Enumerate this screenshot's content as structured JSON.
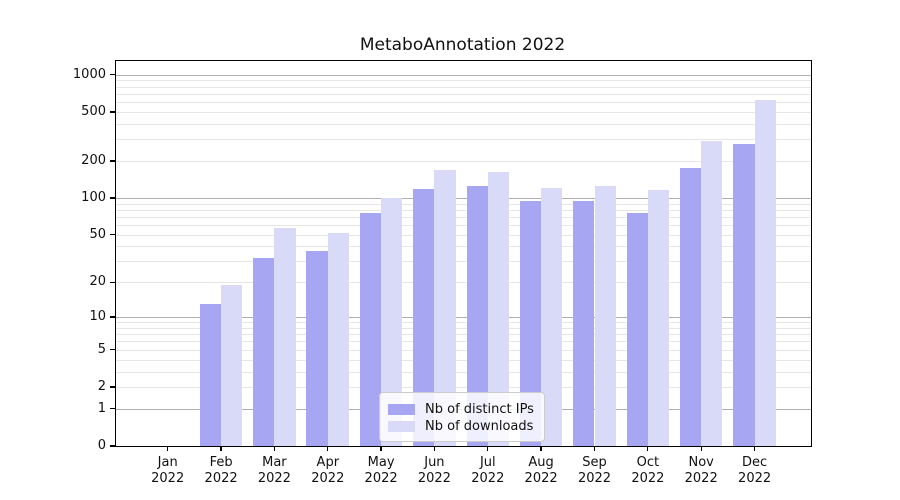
{
  "title": "MetaboAnnotation 2022",
  "legend": {
    "items": [
      {
        "label": "Nb of distinct IPs",
        "color": "#a6a6f2"
      },
      {
        "label": "Nb of downloads",
        "color": "#d9d9f8"
      }
    ]
  },
  "axis": {
    "year_label": "2022",
    "months": [
      "Jan",
      "Feb",
      "Mar",
      "Apr",
      "May",
      "Jun",
      "Jul",
      "Aug",
      "Sep",
      "Oct",
      "Nov",
      "Dec"
    ],
    "y_tick_labels": [
      "0",
      "1",
      "2",
      "5",
      "10",
      "20",
      "50",
      "100",
      "200",
      "500",
      "1000"
    ]
  },
  "chart_data": {
    "type": "bar",
    "title": "MetaboAnnotation 2022",
    "categories": [
      "Jan 2022",
      "Feb 2022",
      "Mar 2022",
      "Apr 2022",
      "May 2022",
      "Jun 2022",
      "Jul 2022",
      "Aug 2022",
      "Sep 2022",
      "Oct 2022",
      "Nov 2022",
      "Dec 2022"
    ],
    "series": [
      {
        "name": "Nb of distinct IPs",
        "color": "#a6a6f2",
        "values": [
          0,
          13,
          32,
          37,
          75,
          118,
          125,
          95,
          94,
          75,
          175,
          273
        ]
      },
      {
        "name": "Nb of downloads",
        "color": "#d9d9f8",
        "values": [
          0,
          19,
          57,
          52,
          100,
          170,
          162,
          120,
          126,
          116,
          290,
          620
        ]
      }
    ],
    "xlabel": "",
    "ylabel": "",
    "y_scale": "log10(value+1)",
    "y_ticks": [
      0,
      1,
      2,
      5,
      10,
      20,
      50,
      100,
      200,
      500,
      1000
    ],
    "y_major_gridlines": [
      1,
      10,
      100,
      1000
    ],
    "y_minor_gridlines": [
      2,
      3,
      4,
      5,
      6,
      7,
      8,
      9,
      20,
      30,
      40,
      50,
      60,
      70,
      80,
      90,
      200,
      300,
      400,
      500,
      600,
      700,
      800,
      900
    ],
    "ylim": [
      0,
      1290
    ],
    "grid": true,
    "legend_position": "lower center-right inside plot"
  },
  "colors": {
    "bar_ips": "#a6a6f2",
    "bar_downloads": "#d9d9f8",
    "grid_major": "#b0b0b0",
    "grid_minor": "#e6e6e6",
    "spine": "#000000",
    "background": "#ffffff"
  }
}
